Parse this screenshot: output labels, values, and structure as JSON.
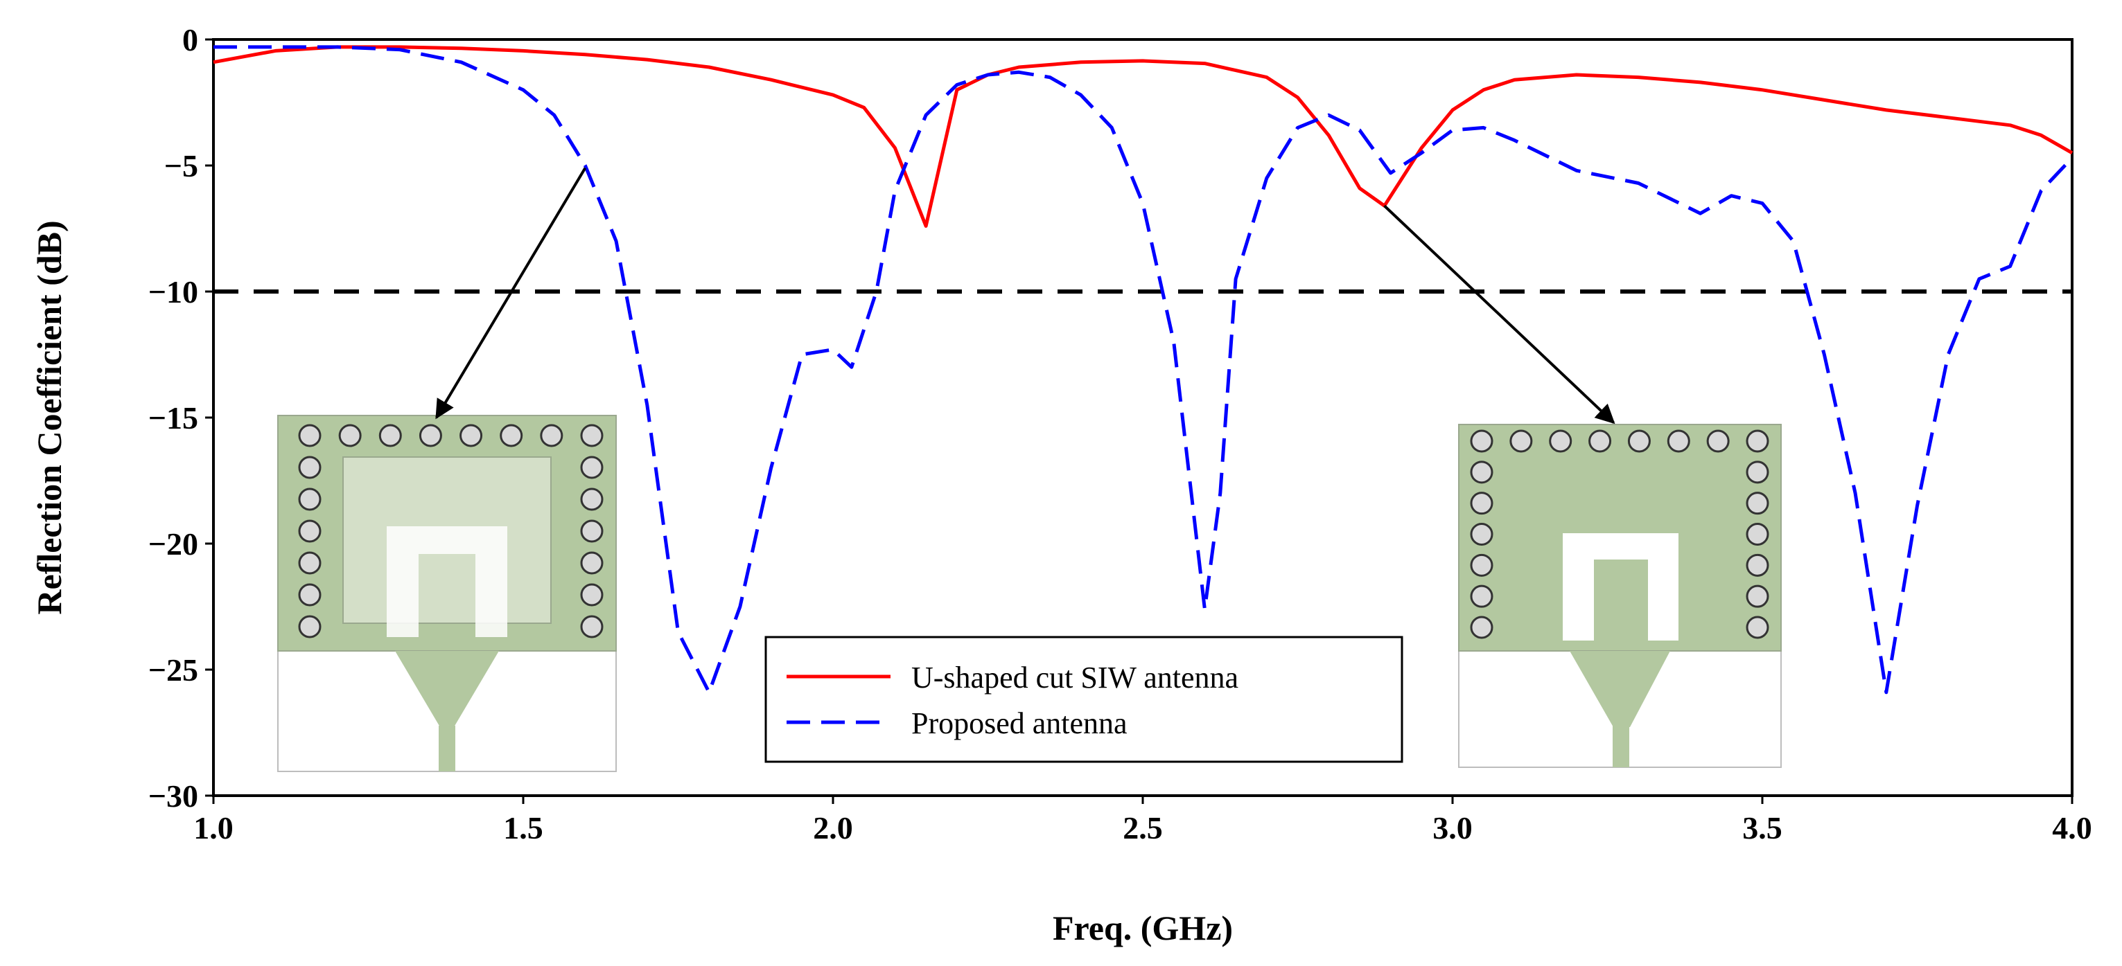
{
  "chart_data": {
    "type": "line",
    "title": "",
    "xlabel": "Freq. (GHz)",
    "ylabel": "Reflection Coefficient (dB)",
    "xlim": [
      1.0,
      4.0
    ],
    "ylim": [
      -30,
      0
    ],
    "x_ticks": [
      "1.0",
      "1.5",
      "2.0",
      "2.5",
      "3.0",
      "3.5",
      "4.0"
    ],
    "y_ticks": [
      "0",
      "−5",
      "−10",
      "−15",
      "−20",
      "−25",
      "−30"
    ],
    "reference_line": {
      "y": -10,
      "style": "dashed",
      "color": "#000000"
    },
    "legend_position": "bottom-center",
    "series": [
      {
        "name": "U-shaped cut SIW antenna",
        "color": "#ff0000",
        "style": "solid",
        "points": [
          [
            1.0,
            -0.9
          ],
          [
            1.1,
            -0.45
          ],
          [
            1.2,
            -0.3
          ],
          [
            1.3,
            -0.3
          ],
          [
            1.4,
            -0.35
          ],
          [
            1.5,
            -0.45
          ],
          [
            1.6,
            -0.6
          ],
          [
            1.7,
            -0.8
          ],
          [
            1.8,
            -1.1
          ],
          [
            1.9,
            -1.6
          ],
          [
            2.0,
            -2.2
          ],
          [
            2.05,
            -2.7
          ],
          [
            2.1,
            -4.3
          ],
          [
            2.15,
            -7.4
          ],
          [
            2.2,
            -2.0
          ],
          [
            2.25,
            -1.4
          ],
          [
            2.3,
            -1.1
          ],
          [
            2.4,
            -0.9
          ],
          [
            2.5,
            -0.85
          ],
          [
            2.6,
            -0.95
          ],
          [
            2.7,
            -1.5
          ],
          [
            2.75,
            -2.3
          ],
          [
            2.8,
            -3.8
          ],
          [
            2.85,
            -5.9
          ],
          [
            2.89,
            -6.6
          ],
          [
            2.95,
            -4.3
          ],
          [
            3.0,
            -2.8
          ],
          [
            3.05,
            -2.0
          ],
          [
            3.1,
            -1.6
          ],
          [
            3.2,
            -1.4
          ],
          [
            3.3,
            -1.5
          ],
          [
            3.4,
            -1.7
          ],
          [
            3.5,
            -2.0
          ],
          [
            3.6,
            -2.4
          ],
          [
            3.7,
            -2.8
          ],
          [
            3.8,
            -3.1
          ],
          [
            3.9,
            -3.4
          ],
          [
            3.95,
            -3.8
          ],
          [
            4.0,
            -4.5
          ]
        ]
      },
      {
        "name": "Proposed antenna",
        "color": "#0000ff",
        "style": "dashed",
        "points": [
          [
            1.0,
            -0.3
          ],
          [
            1.2,
            -0.3
          ],
          [
            1.3,
            -0.4
          ],
          [
            1.4,
            -0.9
          ],
          [
            1.5,
            -2.0
          ],
          [
            1.55,
            -3.0
          ],
          [
            1.6,
            -5.0
          ],
          [
            1.65,
            -8.0
          ],
          [
            1.7,
            -14.5
          ],
          [
            1.75,
            -23.5
          ],
          [
            1.8,
            -25.9
          ],
          [
            1.85,
            -22.5
          ],
          [
            1.9,
            -17.0
          ],
          [
            1.95,
            -12.5
          ],
          [
            2.0,
            -12.3
          ],
          [
            2.03,
            -13.0
          ],
          [
            2.07,
            -10.0
          ],
          [
            2.1,
            -6.0
          ],
          [
            2.15,
            -3.0
          ],
          [
            2.2,
            -1.8
          ],
          [
            2.25,
            -1.4
          ],
          [
            2.3,
            -1.3
          ],
          [
            2.35,
            -1.5
          ],
          [
            2.4,
            -2.2
          ],
          [
            2.45,
            -3.5
          ],
          [
            2.5,
            -6.5
          ],
          [
            2.55,
            -12.0
          ],
          [
            2.6,
            -22.6
          ],
          [
            2.625,
            -18.0
          ],
          [
            2.65,
            -9.5
          ],
          [
            2.7,
            -5.5
          ],
          [
            2.75,
            -3.5
          ],
          [
            2.8,
            -3.0
          ],
          [
            2.85,
            -3.6
          ],
          [
            2.9,
            -5.3
          ],
          [
            2.95,
            -4.5
          ],
          [
            3.0,
            -3.6
          ],
          [
            3.05,
            -3.5
          ],
          [
            3.1,
            -4.0
          ],
          [
            3.2,
            -5.2
          ],
          [
            3.3,
            -5.7
          ],
          [
            3.4,
            -6.9
          ],
          [
            3.45,
            -6.2
          ],
          [
            3.5,
            -6.5
          ],
          [
            3.55,
            -8.0
          ],
          [
            3.6,
            -12.5
          ],
          [
            3.65,
            -18.0
          ],
          [
            3.7,
            -25.9
          ],
          [
            3.75,
            -18.5
          ],
          [
            3.8,
            -12.5
          ],
          [
            3.85,
            -9.5
          ],
          [
            3.9,
            -9.0
          ],
          [
            3.95,
            -6.0
          ],
          [
            4.0,
            -4.7
          ]
        ]
      }
    ],
    "annotations": [
      {
        "type": "arrow",
        "from": [
          1.6,
          -5.1
        ],
        "to": [
          1.36,
          -15.0
        ]
      },
      {
        "type": "arrow",
        "from": [
          2.89,
          -6.6
        ],
        "to": [
          3.26,
          -15.2
        ]
      }
    ],
    "insets": [
      {
        "name": "U-shaped cut SIW antenna with superstrate",
        "depiction": "SIW antenna drawing"
      },
      {
        "name": "U-shaped cut SIW antenna",
        "depiction": "SIW antenna drawing"
      }
    ]
  }
}
